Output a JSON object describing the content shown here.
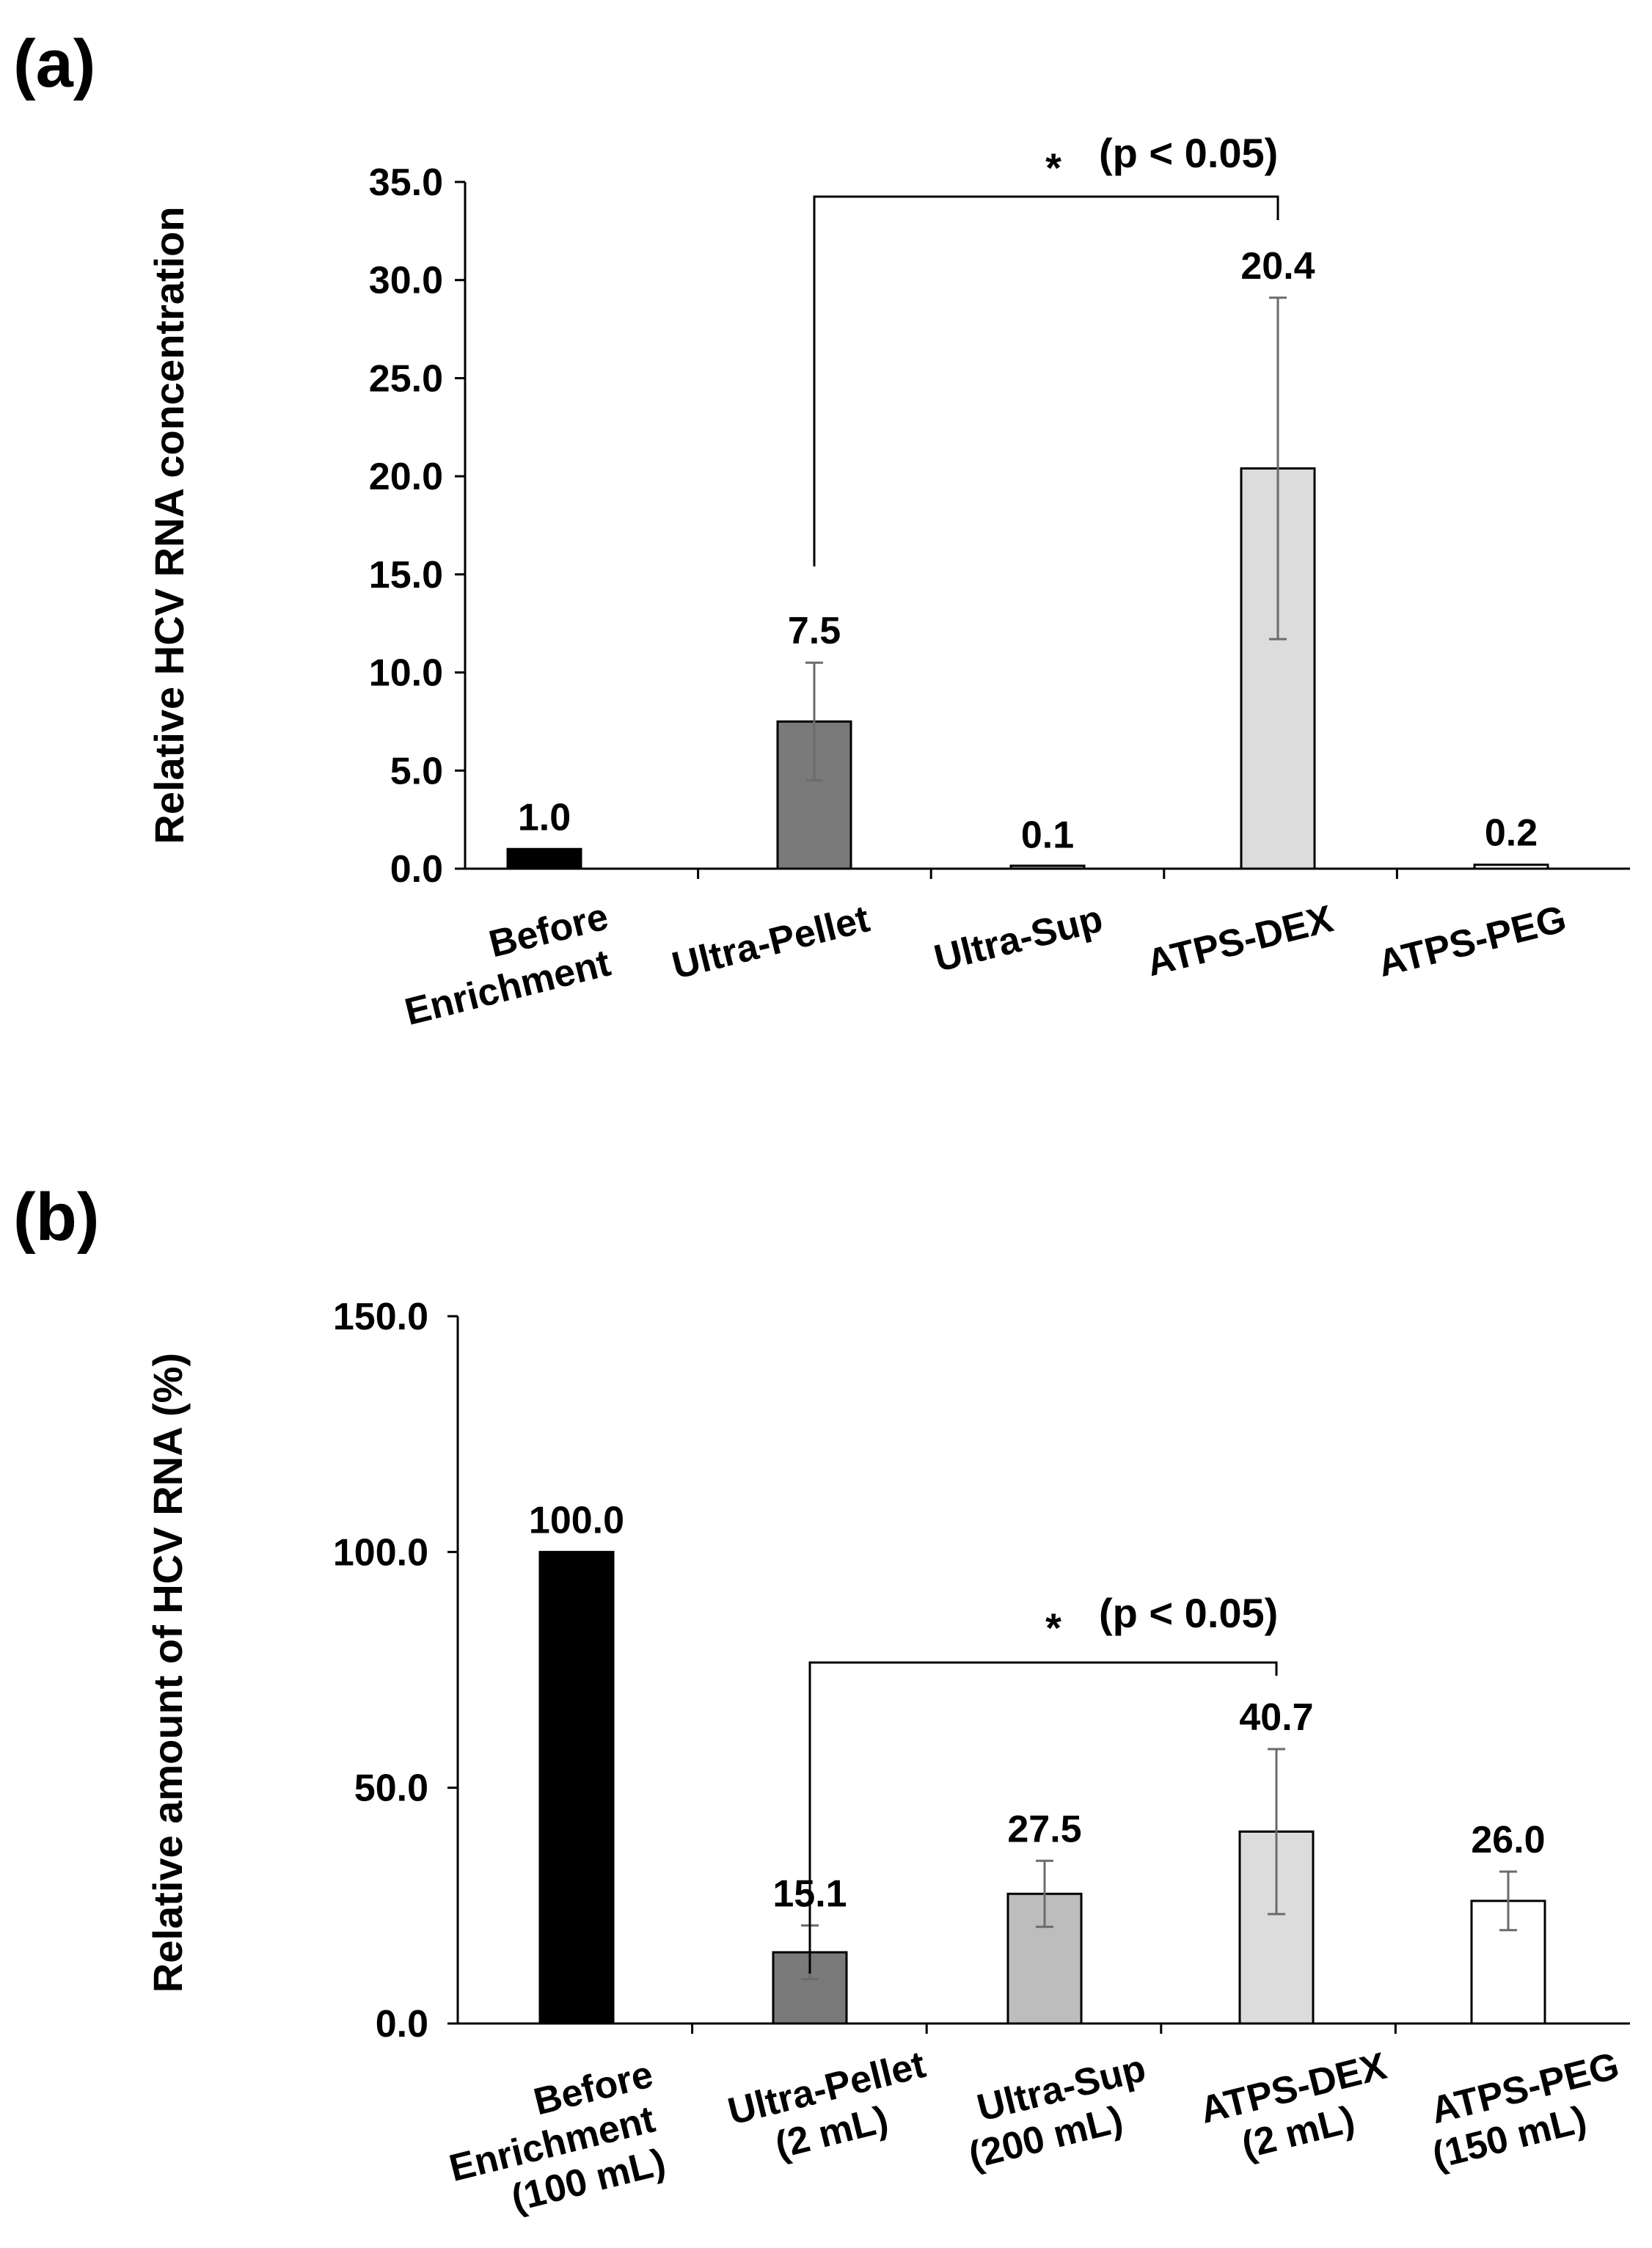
{
  "chart_data": [
    {
      "type": "bar",
      "panel_label": "(a)",
      "title": "",
      "xlabel": "",
      "ylabel": "Relative HCV RNA concentration",
      "ylim": [
        0,
        35
      ],
      "yticks": [
        "0.0",
        "5.0",
        "10.0",
        "15.0",
        "20.0",
        "25.0",
        "30.0",
        "35.0"
      ],
      "categories": [
        [
          "Before",
          "Enrichment"
        ],
        [
          "Ultra-Pellet"
        ],
        [
          "Ultra-Sup"
        ],
        [
          "ATPS-DEX"
        ],
        [
          "ATPS-PEG"
        ]
      ],
      "values": [
        1.0,
        7.5,
        0.1,
        20.4,
        0.2
      ],
      "value_labels": [
        "1.0",
        "7.5",
        "0.1",
        "20.4",
        "0.2"
      ],
      "errors": [
        0.0,
        3.0,
        0.0,
        8.7,
        0.0
      ],
      "bar_colors": [
        "#000000",
        "#7a7a7a",
        "#bdbdbd",
        "#dcdcdc",
        "#ffffff"
      ],
      "significance": {
        "from": 1,
        "to": 3,
        "star": "*",
        "text": "(p < 0.05)"
      },
      "grid": false
    },
    {
      "type": "bar",
      "panel_label": "(b)",
      "title": "",
      "xlabel": "",
      "ylabel": "Relative amount of HCV RNA (%)",
      "ylim": [
        0,
        150
      ],
      "yticks": [
        "0.0",
        "50.0",
        "100.0",
        "150.0"
      ],
      "categories": [
        [
          "Before",
          "Enrichment",
          "(100 mL)"
        ],
        [
          "Ultra-Pellet",
          "(2 mL)"
        ],
        [
          "Ultra-Sup",
          "(200 mL)"
        ],
        [
          "ATPS-DEX",
          "(2 mL)"
        ],
        [
          "ATPS-PEG",
          "(150 mL)"
        ]
      ],
      "values": [
        100.0,
        15.1,
        27.5,
        40.7,
        26.0
      ],
      "value_labels": [
        "100.0",
        "15.1",
        "27.5",
        "40.7",
        "26.0"
      ],
      "errors": [
        0.0,
        5.7,
        7.0,
        17.5,
        6.2
      ],
      "bar_colors": [
        "#000000",
        "#7a7a7a",
        "#bdbdbd",
        "#dcdcdc",
        "#ffffff"
      ],
      "significance": {
        "from": 1,
        "to": 3,
        "star": "*",
        "text": "(p < 0.05)"
      },
      "grid": false
    }
  ]
}
